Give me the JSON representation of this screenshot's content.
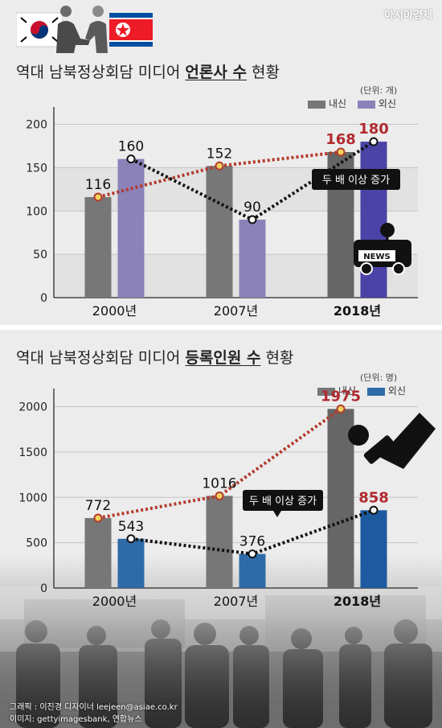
{
  "header": {
    "brand": "아시아경제"
  },
  "chart_data": [
    {
      "type": "bar",
      "title_prefix": "역대 남북정상회담 미디어 ",
      "title_emph": "언론사 수",
      "title_suffix": " 현황",
      "unit": "(단위: 개)",
      "categories": [
        "2000년",
        "2007년",
        "2018년"
      ],
      "ylim": [
        0,
        220
      ],
      "yticks": [
        0,
        50,
        100,
        150,
        200
      ],
      "series": [
        {
          "name": "내신",
          "values": [
            116,
            152,
            168
          ],
          "color": "#777777",
          "line_color": "#b33a2c"
        },
        {
          "name": "외신",
          "values": [
            160,
            90,
            180
          ],
          "color": "#8a82b8",
          "line_color": "#111111"
        }
      ],
      "highlight_category": "2018년",
      "highlight_colors": [
        "#666666",
        "#4b43a6"
      ],
      "annotation": "두 배 이상 증가",
      "icon": "news-van-icon"
    },
    {
      "type": "bar",
      "title_prefix": "역대 남북정상회담 미디어 ",
      "title_emph": "등록인원 수",
      "title_suffix": " 현황",
      "unit": "(단위: 명)",
      "categories": [
        "2000년",
        "2007년",
        "2018년"
      ],
      "ylim": [
        0,
        2200
      ],
      "yticks": [
        0,
        500,
        1000,
        1500,
        2000
      ],
      "series": [
        {
          "name": "내신",
          "values": [
            772,
            1016,
            1975
          ],
          "color": "#777777",
          "line_color": "#b33a2c"
        },
        {
          "name": "외신",
          "values": [
            543,
            376,
            858
          ],
          "color": "#2f6aa8",
          "line_color": "#111111"
        }
      ],
      "highlight_category": "2018년",
      "highlight_colors": [
        "#666666",
        "#1d5aa0"
      ],
      "annotation": "두 배 이상 증가",
      "icon": "microphone-icon"
    }
  ],
  "credits": {
    "line1": "그래픽 : 이진경 디자이너 leejeen@asiae.co.kr",
    "line2": "이미지: gettyimagesbank, 연합뉴스"
  }
}
